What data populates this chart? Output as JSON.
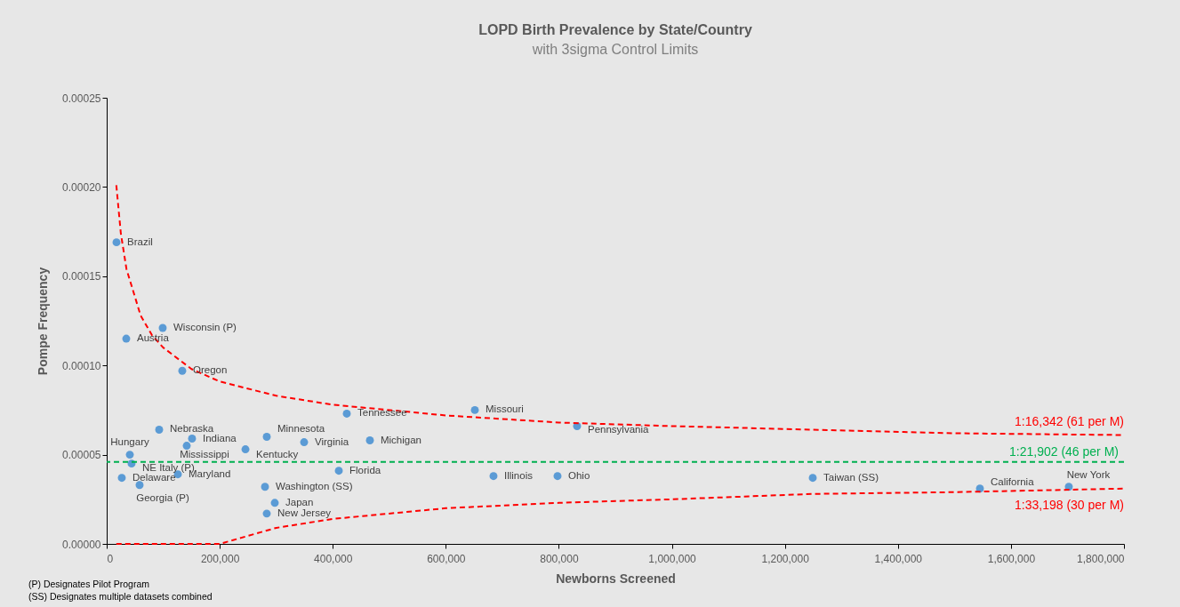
{
  "chart_data": {
    "type": "scatter",
    "title": "LOPD Birth Prevalence by State/Country",
    "subtitle": "with 3sigma Control Limits",
    "xlabel": "Newborns Screened",
    "ylabel": "Pompe Frequency",
    "xlim": [
      0,
      1800000
    ],
    "xticks": [
      {
        "value": 0,
        "label": "0"
      },
      {
        "value": 200000,
        "label": "200,000"
      },
      {
        "value": 400000,
        "label": "400,000"
      },
      {
        "value": 600000,
        "label": "600,000"
      },
      {
        "value": 800000,
        "label": "800,000"
      },
      {
        "value": 1000000,
        "label": "1,000,000"
      },
      {
        "value": 1200000,
        "label": "1,200,000"
      },
      {
        "value": 1400000,
        "label": "1,400,000"
      },
      {
        "value": 1600000,
        "label": "1,600,000"
      },
      {
        "value": 1800000,
        "label": "1,800,000"
      }
    ],
    "ylim": [
      0,
      0.00025
    ],
    "yticks": [
      {
        "value": 0,
        "label": "0.00000"
      },
      {
        "value": 5e-05,
        "label": "0.00005"
      },
      {
        "value": 0.0001,
        "label": "0.00010"
      },
      {
        "value": 0.00015,
        "label": "0.00015"
      },
      {
        "value": 0.0002,
        "label": "0.00020"
      },
      {
        "value": 0.00025,
        "label": "0.00025"
      }
    ],
    "grid": false,
    "series": [
      {
        "type": "scatter",
        "marker": "circle",
        "color": "#5b9bd5",
        "x": [
          17300,
          34600,
          99100,
          133700,
          92800,
          40900,
          44000,
          26700,
          58200,
          151000,
          141600,
          125900,
          245500,
          283200,
          349300,
          465700,
          424800,
          651400,
          832300,
          410700,
          280100,
          297400,
          283200,
          684400,
          797700,
          1249300,
          1545100,
          1702400
        ],
        "values": [
          0.000169,
          0.000115,
          0.000121,
          9.7e-05,
          6.4e-05,
          5e-05,
          4.5e-05,
          3.7e-05,
          3.3e-05,
          5.9e-05,
          5.5e-05,
          3.9e-05,
          5.3e-05,
          6e-05,
          5.7e-05,
          5.8e-05,
          7.3e-05,
          7.5e-05,
          6.6e-05,
          4.1e-05,
          3.2e-05,
          2.3e-05,
          1.7e-05,
          3.8e-05,
          3.8e-05,
          3.7e-05,
          3.1e-05,
          3.2e-05
        ]
      },
      {
        "type": "line",
        "name": "1:16,342 (61 per M)",
        "color": "#ff0000",
        "line_style": "dashed",
        "x": [
          17000,
          25000,
          35000,
          60000,
          80000,
          100000,
          150000,
          200000,
          300000,
          400000,
          600000,
          800000,
          1000000,
          1250000,
          1500000,
          1800000
        ],
        "values": [
          0.000201,
          0.000174,
          0.000154,
          0.000128,
          0.000117,
          0.00011,
          9.8e-05,
          9.1e-05,
          8.3e-05,
          7.8e-05,
          7.2e-05,
          6.8e-05,
          6.6e-05,
          6.4e-05,
          6.2e-05,
          6.1e-05
        ]
      },
      {
        "type": "line",
        "name": "1:33,198 (30 per M)",
        "color": "#ff0000",
        "line_style": "dashed",
        "x": [
          17000,
          35000,
          60000,
          100000,
          150000,
          200000,
          300000,
          400000,
          600000,
          800000,
          1000000,
          1250000,
          1500000,
          1800000
        ],
        "values": [
          0,
          0,
          0,
          0,
          0,
          0,
          9e-06,
          1.4e-05,
          2e-05,
          2.3e-05,
          2.5e-05,
          2.8e-05,
          2.9e-05,
          3.1e-05
        ]
      }
    ],
    "ref_lines": [
      {
        "axis": "y",
        "value": 4.6e-05,
        "label": "1:21,902 (46 per M)",
        "color": "#00b050",
        "line_style": "dashed"
      }
    ],
    "annotations": [
      {
        "text": "Brazil",
        "x": 17300,
        "y": 0.000169
      },
      {
        "text": "Austria",
        "x": 34600,
        "y": 0.000115
      },
      {
        "text": "Wisconsin (P)",
        "x": 99100,
        "y": 0.000121
      },
      {
        "text": "Oregon",
        "x": 133700,
        "y": 9.7e-05
      },
      {
        "text": "Nebraska",
        "x": 92800,
        "y": 6.4e-05
      },
      {
        "text": "Hungary",
        "x": 40900,
        "y": 5e-05
      },
      {
        "text": "NE Italy (P)",
        "x": 44000,
        "y": 4.5e-05
      },
      {
        "text": "Delaware",
        "x": 26700,
        "y": 3.7e-05
      },
      {
        "text": "Georgia (P)",
        "x": 58200,
        "y": 3.3e-05
      },
      {
        "text": "Indiana",
        "x": 151000,
        "y": 5.9e-05
      },
      {
        "text": "Mississippi",
        "x": 141600,
        "y": 5.5e-05
      },
      {
        "text": "Maryland",
        "x": 125900,
        "y": 3.9e-05
      },
      {
        "text": "Kentucky",
        "x": 245500,
        "y": 5.3e-05
      },
      {
        "text": "Minnesota",
        "x": 283200,
        "y": 6e-05
      },
      {
        "text": "Virginia",
        "x": 349300,
        "y": 5.7e-05
      },
      {
        "text": "Michigan",
        "x": 465700,
        "y": 5.8e-05
      },
      {
        "text": "Tennessee",
        "x": 424800,
        "y": 7.3e-05
      },
      {
        "text": "Missouri",
        "x": 651400,
        "y": 7.5e-05
      },
      {
        "text": "Pennsylvania",
        "x": 832300,
        "y": 6.6e-05
      },
      {
        "text": "Florida",
        "x": 410700,
        "y": 4.1e-05
      },
      {
        "text": "Washington (SS)",
        "x": 280100,
        "y": 3.2e-05
      },
      {
        "text": "Japan",
        "x": 297400,
        "y": 2.3e-05
      },
      {
        "text": "New Jersey",
        "x": 283200,
        "y": 1.7e-05
      },
      {
        "text": "Illinois",
        "x": 684400,
        "y": 3.8e-05
      },
      {
        "text": "Ohio",
        "x": 797700,
        "y": 3.8e-05
      },
      {
        "text": "Taiwan (SS)",
        "x": 1249300,
        "y": 3.7e-05
      },
      {
        "text": "California",
        "x": 1545100,
        "y": 3.1e-05
      },
      {
        "text": "New York",
        "x": 1702400,
        "y": 3.2e-05
      },
      "(P) Designates Pilot Program",
      "(SS) Designates multiple datasets combined"
    ]
  }
}
